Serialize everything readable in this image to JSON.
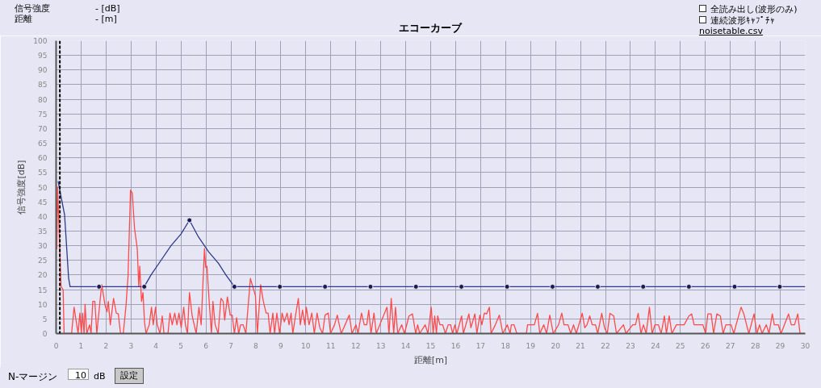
{
  "chart_data": {
    "type": "line",
    "title": "エコーカーブ",
    "xlabel": "距離[m]",
    "ylabel": "信号強度[dB]",
    "xlim": [
      0,
      30
    ],
    "ylim": [
      0,
      100
    ],
    "xticks": [
      0,
      1,
      2,
      3,
      4,
      5,
      6,
      7,
      8,
      9,
      10,
      11,
      12,
      13,
      14,
      15,
      16,
      17,
      18,
      19,
      20,
      21,
      22,
      23,
      24,
      25,
      26,
      27,
      28,
      29,
      30
    ],
    "yticks": [
      0,
      5,
      10,
      15,
      20,
      25,
      30,
      35,
      40,
      45,
      50,
      55,
      60,
      65,
      70,
      75,
      80,
      85,
      90,
      95,
      100
    ],
    "grid": true,
    "ref_lines": [
      {
        "axis": "x",
        "value": 0.15,
        "color": "#000000",
        "line_style": "dashed"
      }
    ],
    "annotations": [
      "信号強度",
      "- [dB]",
      "距離",
      "- [m]",
      "全読み出し(波形のみ)",
      "連続波形ｷｬﾌﾟﾁｬ",
      "noisetable.csv",
      "N-マージン",
      "10",
      "dB",
      "設定"
    ],
    "series": [
      {
        "color": "#ff4a4a",
        "marker": "none",
        "x": [
          0.0,
          0.03,
          0.06,
          0.1,
          0.2,
          0.28,
          0.32,
          0.62,
          0.72,
          0.88,
          0.95,
          1.01,
          1.06,
          1.12,
          1.16,
          1.23,
          1.34,
          1.4,
          1.47,
          1.55,
          1.63,
          1.8,
          1.83,
          1.96,
          2.04,
          2.09,
          2.17,
          2.3,
          2.41,
          2.49,
          2.58,
          2.69,
          2.8,
          2.88,
          2.98,
          3.05,
          3.14,
          3.25,
          3.31,
          3.35,
          3.42,
          3.48,
          3.54,
          3.6,
          3.73,
          3.82,
          3.89,
          3.98,
          4.05,
          4.16,
          4.25,
          4.32,
          4.48,
          4.56,
          4.65,
          4.75,
          4.84,
          4.92,
          5.01,
          5.11,
          5.18,
          5.26,
          5.34,
          5.45,
          5.53,
          5.61,
          5.72,
          5.81,
          5.94,
          5.99,
          6.04,
          6.13,
          6.22,
          6.28,
          6.37,
          6.49,
          6.6,
          6.69,
          6.75,
          6.86,
          6.97,
          7.05,
          7.14,
          7.23,
          7.31,
          7.39,
          7.49,
          7.6,
          7.78,
          7.98,
          8.06,
          8.19,
          8.3,
          8.41,
          8.49,
          8.57,
          8.68,
          8.75,
          8.84,
          8.95,
          9.05,
          9.14,
          9.25,
          9.33,
          9.41,
          9.48,
          9.59,
          9.7,
          9.78,
          9.87,
          9.96,
          10.02,
          10.13,
          10.24,
          10.34,
          10.45,
          10.56,
          10.67,
          10.77,
          10.9,
          10.99,
          11.15,
          11.26,
          11.34,
          11.42,
          11.74,
          11.85,
          12.01,
          12.09,
          12.23,
          12.34,
          12.44,
          12.52,
          12.61,
          12.73,
          12.82,
          13.25,
          13.33,
          13.42,
          13.52,
          13.59,
          13.68,
          13.84,
          13.95,
          14.13,
          14.27,
          14.4,
          14.48,
          14.56,
          14.78,
          14.89,
          15.02,
          15.1,
          15.16,
          15.23,
          15.28,
          15.37,
          15.48,
          15.59,
          15.7,
          15.8,
          15.88,
          15.97,
          16.05,
          16.24,
          16.31,
          16.53,
          16.61,
          16.77,
          16.85,
          16.97,
          17.05,
          17.15,
          17.24,
          17.35,
          17.42,
          17.59,
          17.75,
          17.89,
          18.07,
          18.18,
          18.23,
          18.34,
          18.45,
          18.83,
          18.88,
          19.15,
          19.28,
          19.37,
          19.53,
          19.64,
          19.77,
          19.91,
          20.12,
          20.25,
          20.34,
          20.5,
          20.61,
          20.72,
          20.83,
          21.07,
          21.17,
          21.26,
          21.37,
          21.47,
          21.6,
          21.69,
          21.85,
          21.96,
          22.07,
          22.18,
          22.33,
          22.44,
          22.72,
          22.82,
          23.09,
          23.2,
          23.31,
          23.42,
          23.52,
          23.63,
          23.76,
          23.87,
          23.98,
          24.12,
          24.23,
          24.36,
          24.44,
          24.55,
          24.66,
          24.84,
          25.15,
          25.34,
          25.45,
          25.55,
          25.68,
          25.9,
          26.01,
          26.1,
          26.23,
          26.33,
          26.46,
          26.6,
          26.71,
          26.82,
          27.03,
          27.14,
          27.23,
          27.43,
          27.54,
          27.65,
          27.74,
          27.95,
          28.06,
          28.17,
          28.27,
          28.44,
          28.55,
          28.68,
          28.76,
          28.92,
          29.03,
          29.33,
          29.44,
          29.57,
          29.7,
          29.79,
          30.0
        ],
        "values": [
          51,
          29,
          50,
          40,
          16,
          15,
          0,
          0,
          9,
          0,
          7,
          0,
          7,
          0,
          10,
          0,
          3,
          0,
          11,
          11,
          0,
          14.6,
          16.7,
          9.6,
          7.5,
          11,
          3,
          12,
          7,
          6.7,
          0,
          0,
          9.6,
          19.6,
          49,
          48,
          36,
          29,
          16,
          23,
          11,
          14,
          4,
          0,
          3,
          9,
          3,
          9,
          3,
          0,
          6,
          0,
          0,
          7,
          3,
          7,
          3,
          7,
          2,
          9,
          3,
          0,
          14,
          6,
          3,
          0,
          9,
          3,
          29,
          22.6,
          23,
          11,
          0,
          11,
          3,
          0,
          12,
          11,
          4.6,
          12.5,
          6.3,
          6.3,
          0,
          5.4,
          0,
          3,
          3,
          0,
          18.8,
          13,
          0,
          16.7,
          11,
          7,
          7,
          0,
          7,
          0,
          7,
          0,
          7,
          4,
          7,
          3,
          7,
          0,
          6.3,
          12,
          3,
          8,
          3,
          9,
          3,
          7,
          0,
          7,
          2,
          0,
          6.3,
          7,
          0,
          3,
          6.3,
          3,
          0,
          6.3,
          0,
          3,
          0,
          7,
          3,
          3,
          8,
          0,
          7,
          0,
          9,
          0,
          12,
          0,
          9,
          0,
          3,
          0,
          6,
          6.7,
          0,
          3,
          0,
          3,
          0,
          9,
          0,
          6,
          0,
          6,
          3,
          3,
          0,
          3,
          3,
          0,
          3,
          0,
          6,
          0,
          6.7,
          2,
          6.7,
          0,
          6.3,
          3,
          7,
          6.7,
          9,
          0,
          3,
          6.3,
          0,
          3,
          0,
          3,
          3,
          0,
          0,
          3,
          3,
          6.9,
          0,
          3,
          0,
          6.3,
          0,
          3,
          7,
          3,
          3,
          0,
          3,
          0,
          6.9,
          2,
          3,
          6,
          3,
          3,
          0,
          6.9,
          2,
          0,
          6.9,
          6,
          0,
          3,
          0,
          3,
          3,
          6.9,
          0,
          3,
          0,
          9,
          0,
          3,
          3,
          0,
          6,
          0,
          6,
          0,
          3,
          3,
          6,
          6.7,
          3,
          3,
          3,
          0,
          6.7,
          6.7,
          0,
          6.7,
          6,
          0,
          3,
          3,
          0,
          3,
          9,
          6.7,
          3,
          0,
          6.7,
          0,
          3,
          0,
          3,
          0,
          6.7,
          3,
          3,
          0,
          6.7,
          3,
          3,
          6.7,
          0,
          0
        ]
      },
      {
        "color": "#2e3a87",
        "marker": "none",
        "x": [
          0.08,
          0.34,
          0.5,
          0.56,
          3.53,
          3.8,
          4.2,
          4.6,
          5.0,
          5.34,
          5.7,
          6.1,
          6.5,
          6.8,
          7.14,
          30
        ],
        "values": [
          52,
          40.5,
          19,
          16,
          16,
          20,
          25,
          30,
          34,
          38.7,
          33,
          28,
          24,
          20,
          16,
          16
        ]
      },
      {
        "type": "scatter",
        "color": "#1a1a4d",
        "marker": "circle",
        "x": [
          1.72,
          3.53,
          5.34,
          7.14,
          8.96,
          10.77,
          12.59,
          14.41,
          16.23,
          18.06,
          19.88,
          21.69,
          23.51,
          25.34,
          27.17,
          28.98
        ],
        "values": [
          16,
          16,
          38.7,
          16,
          16,
          16,
          16,
          16,
          16,
          16,
          16,
          16,
          16,
          16,
          16,
          16
        ]
      }
    ]
  }
}
